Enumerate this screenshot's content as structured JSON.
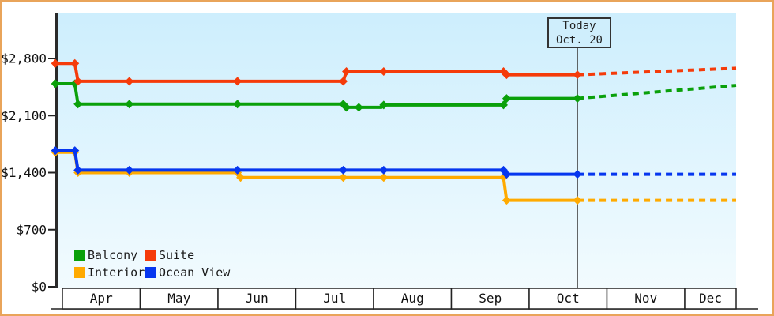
{
  "chart_data": {
    "type": "line",
    "x_axis": {
      "months": [
        "Apr",
        "May",
        "Jun",
        "Jul",
        "Aug",
        "Sep",
        "Oct",
        "Nov",
        "Dec"
      ]
    },
    "y_axis": {
      "max": 2800,
      "ticks": [
        {
          "label": "$0",
          "value": 0
        },
        {
          "label": "$700",
          "value": 700
        },
        {
          "label": "$1,400",
          "value": 1400
        },
        {
          "label": "$2,100",
          "value": 2100
        },
        {
          "label": "$2,800",
          "value": 2800
        }
      ]
    },
    "today": {
      "line1": "Today",
      "line2": "Oct. 20",
      "month_offset": 6.62
    },
    "timeline": {
      "start_offset": -0.09,
      "end_offset": 8.66
    },
    "series": [
      {
        "name": "Balcony",
        "color": "#0aa00a",
        "points": [
          [
            -0.09,
            2490,
            1
          ],
          [
            0.16,
            2490,
            1
          ],
          [
            0.2,
            2240,
            1
          ],
          [
            0.86,
            2240,
            1
          ],
          [
            2.25,
            2240,
            1
          ],
          [
            3.61,
            2240,
            1
          ],
          [
            3.65,
            2200,
            1
          ],
          [
            3.81,
            2200,
            1
          ],
          [
            4.1,
            2200,
            0
          ],
          [
            4.13,
            2230,
            1
          ],
          [
            5.67,
            2230,
            1
          ],
          [
            5.71,
            2310,
            1
          ],
          [
            6.62,
            2310,
            1
          ]
        ],
        "projection": [
          [
            6.62,
            2310
          ],
          [
            8.66,
            2470
          ]
        ]
      },
      {
        "name": "Suite",
        "color": "#f53b0a",
        "points": [
          [
            -0.09,
            2740,
            1
          ],
          [
            0.16,
            2740,
            1
          ],
          [
            0.2,
            2520,
            1
          ],
          [
            0.86,
            2520,
            1
          ],
          [
            2.25,
            2520,
            1
          ],
          [
            3.61,
            2520,
            1
          ],
          [
            3.65,
            2640,
            1
          ],
          [
            4.13,
            2640,
            1
          ],
          [
            5.67,
            2640,
            1
          ],
          [
            5.71,
            2600,
            1
          ],
          [
            6.62,
            2600,
            1
          ]
        ],
        "projection": [
          [
            6.62,
            2600
          ],
          [
            8.66,
            2680
          ]
        ]
      },
      {
        "name": "Interior",
        "color": "#ffaa00",
        "points": [
          [
            -0.09,
            1650,
            1
          ],
          [
            0.16,
            1650,
            1
          ],
          [
            0.2,
            1400,
            1
          ],
          [
            0.86,
            1400,
            1
          ],
          [
            2.25,
            1400,
            1
          ],
          [
            2.29,
            1340,
            1
          ],
          [
            3.61,
            1340,
            1
          ],
          [
            4.13,
            1340,
            1
          ],
          [
            5.67,
            1340,
            1
          ],
          [
            5.71,
            1060,
            1
          ],
          [
            6.62,
            1060,
            1
          ]
        ],
        "projection": [
          [
            6.62,
            1060
          ],
          [
            8.66,
            1060
          ]
        ]
      },
      {
        "name": "Ocean View",
        "color": "#0636ef",
        "points": [
          [
            -0.09,
            1670,
            1
          ],
          [
            0.16,
            1670,
            1
          ],
          [
            0.2,
            1430,
            1
          ],
          [
            0.86,
            1430,
            1
          ],
          [
            2.25,
            1430,
            1
          ],
          [
            3.61,
            1430,
            1
          ],
          [
            4.13,
            1430,
            1
          ],
          [
            5.67,
            1430,
            1
          ],
          [
            5.71,
            1380,
            1
          ],
          [
            6.62,
            1380,
            1
          ]
        ],
        "projection": [
          [
            6.62,
            1380
          ],
          [
            8.66,
            1380
          ]
        ]
      }
    ]
  }
}
